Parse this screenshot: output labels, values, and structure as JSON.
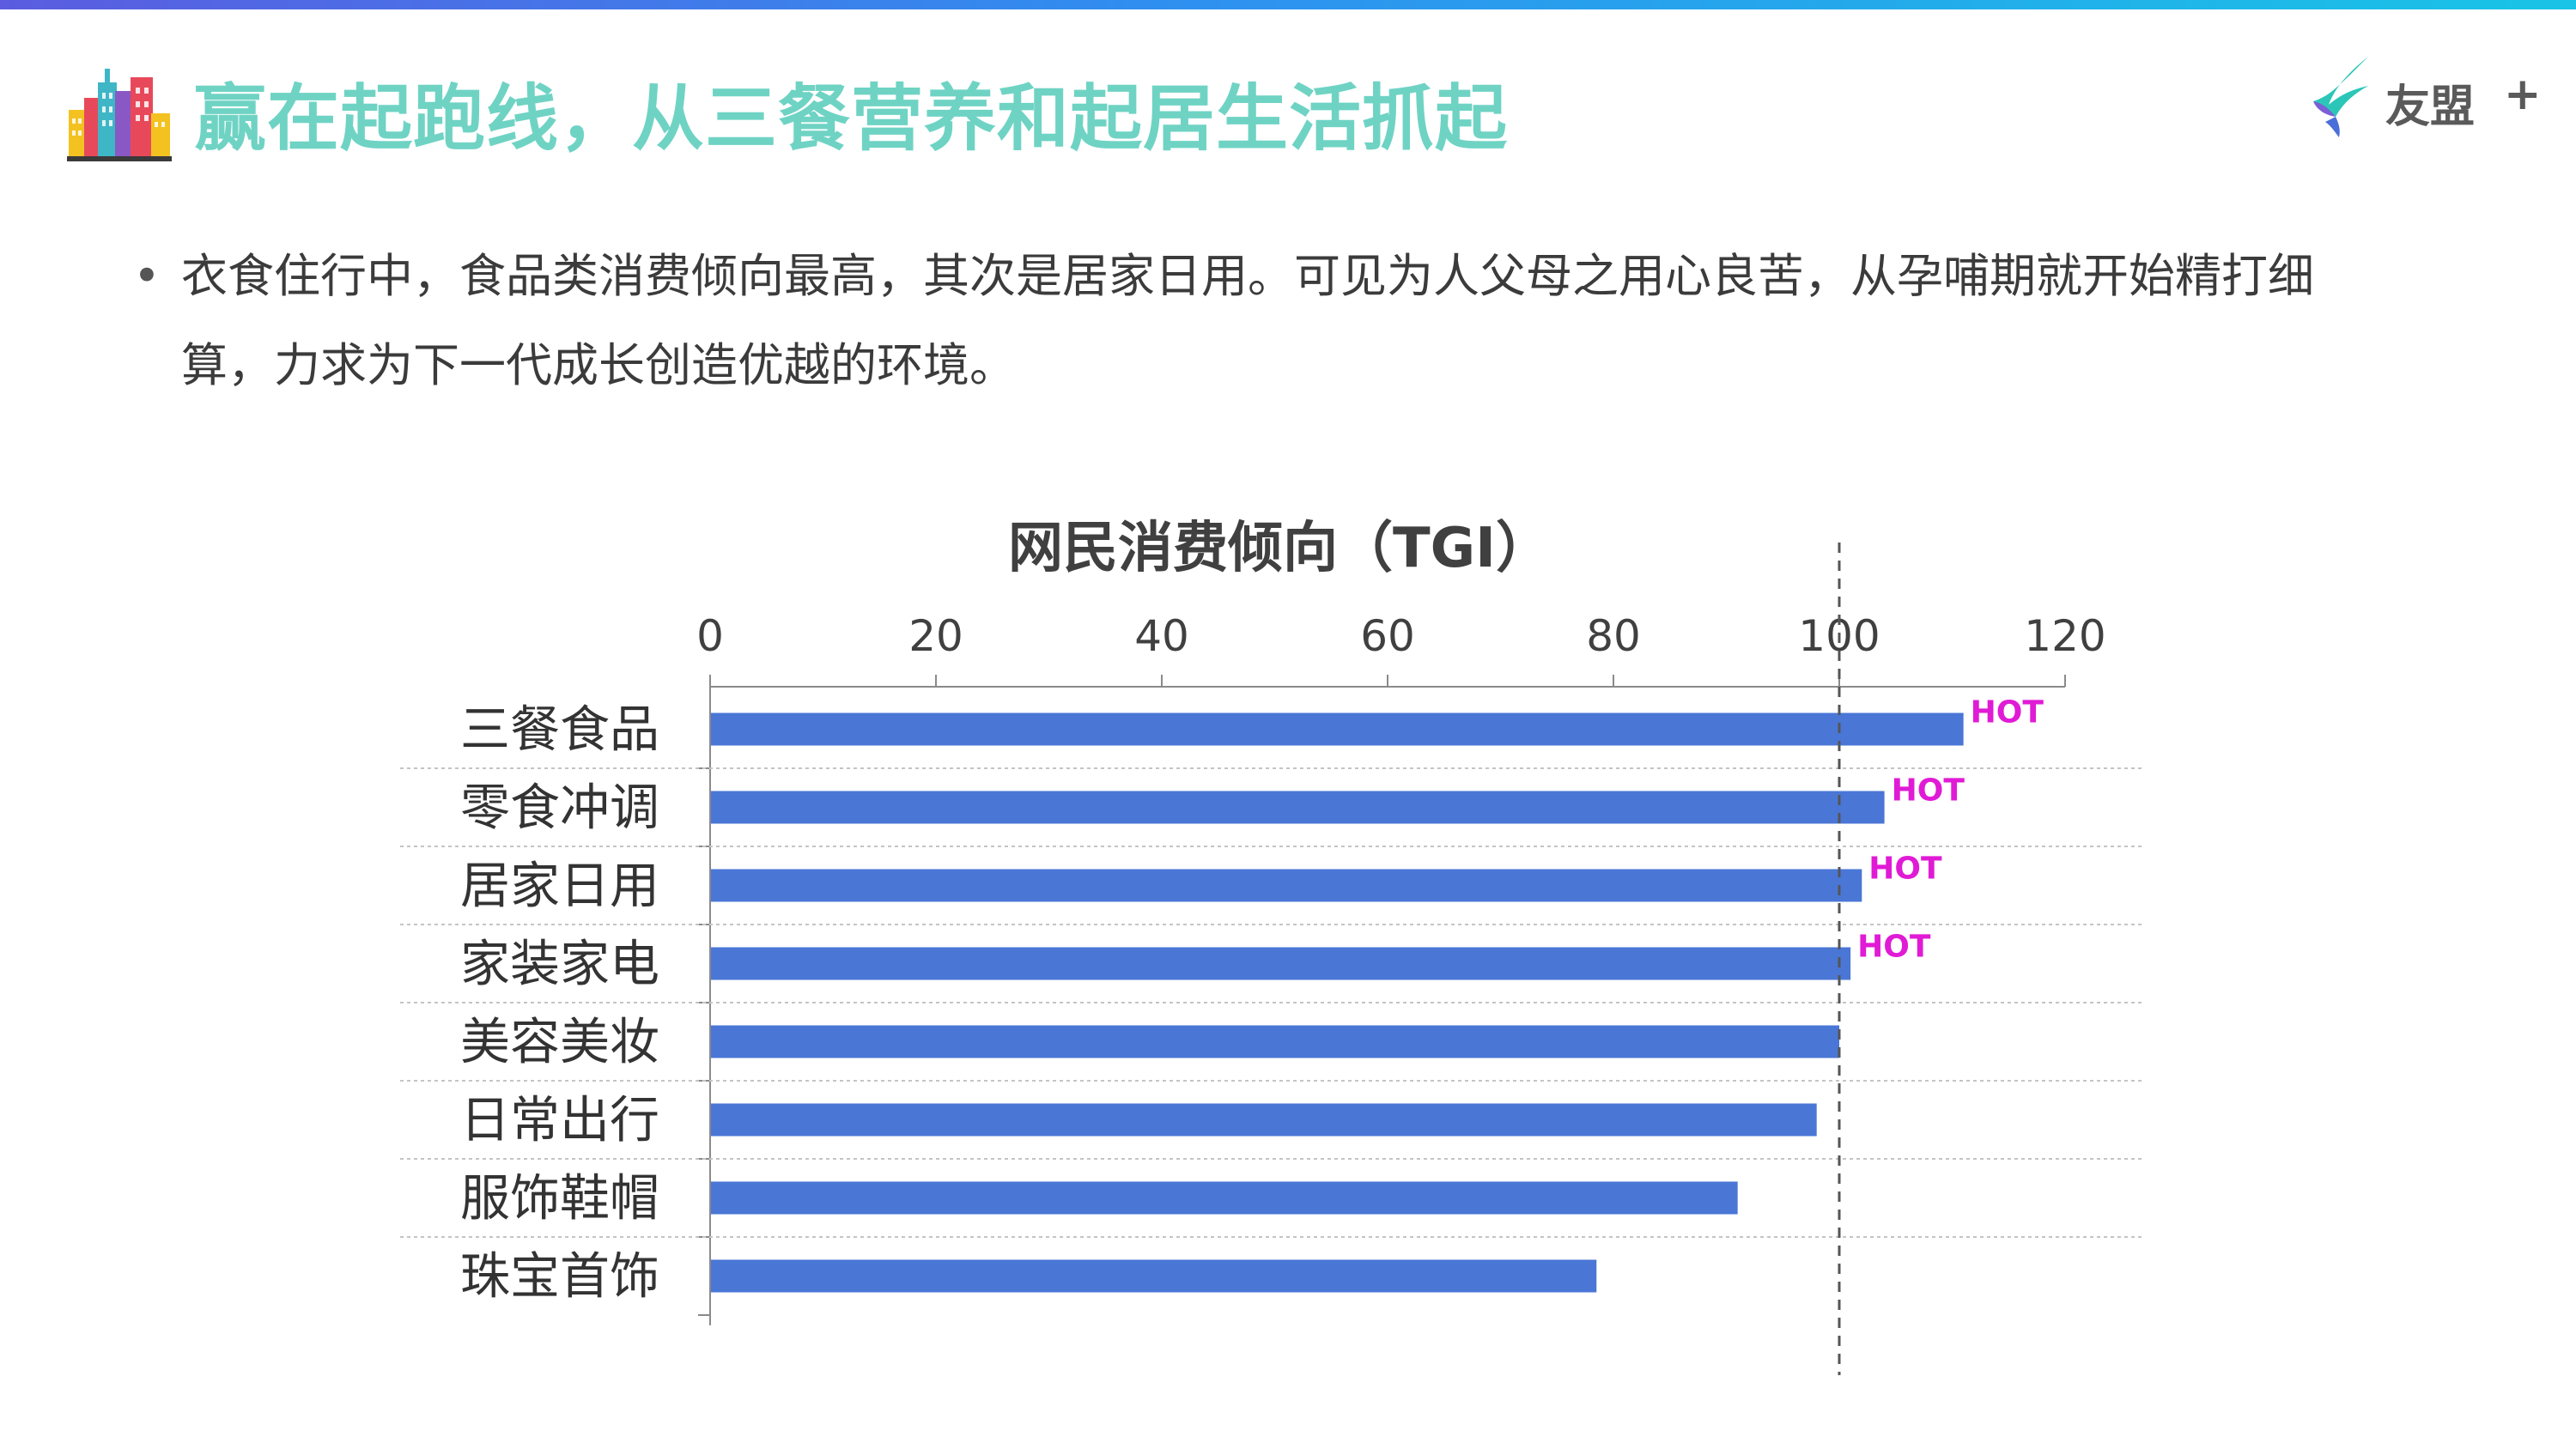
{
  "header": {
    "title": "赢在起跑线，从三餐营养和起居生活抓起",
    "icon": "city-buildings-icon"
  },
  "logo": {
    "text": "友盟",
    "plus": "+",
    "icon": "umeng-leaf-icon"
  },
  "bullet": {
    "text": "衣食住行中，食品类消费倾向最高，其次是居家日用。可见为人父母之用心良苦，从孕哺期就开始精打细算，力求为下一代成长创造优越的环境。"
  },
  "chart_data": {
    "type": "bar",
    "orientation": "horizontal",
    "title": "网民消费倾向（TGI）",
    "categories": [
      "三餐食品",
      "零食冲调",
      "居家日用",
      "家装家电",
      "美容美妆",
      "日常出行",
      "服饰鞋帽",
      "珠宝首饰"
    ],
    "values": [
      111,
      104,
      102,
      101,
      100,
      98,
      91,
      78.5
    ],
    "annotations": [
      "HOT",
      "HOT",
      "HOT",
      "HOT",
      "",
      "",
      "",
      ""
    ],
    "xlim": [
      0,
      120
    ],
    "xticks": [
      "0",
      "20",
      "40",
      "60",
      "80",
      "100",
      "120"
    ],
    "xtick_values": [
      0,
      20,
      40,
      60,
      80,
      100,
      120
    ],
    "reference_line": 100,
    "axis_position": "top",
    "grid": false,
    "bar_color": "#4a76d6",
    "annotation_color": "#e01bd6",
    "title_color": "#404040"
  }
}
